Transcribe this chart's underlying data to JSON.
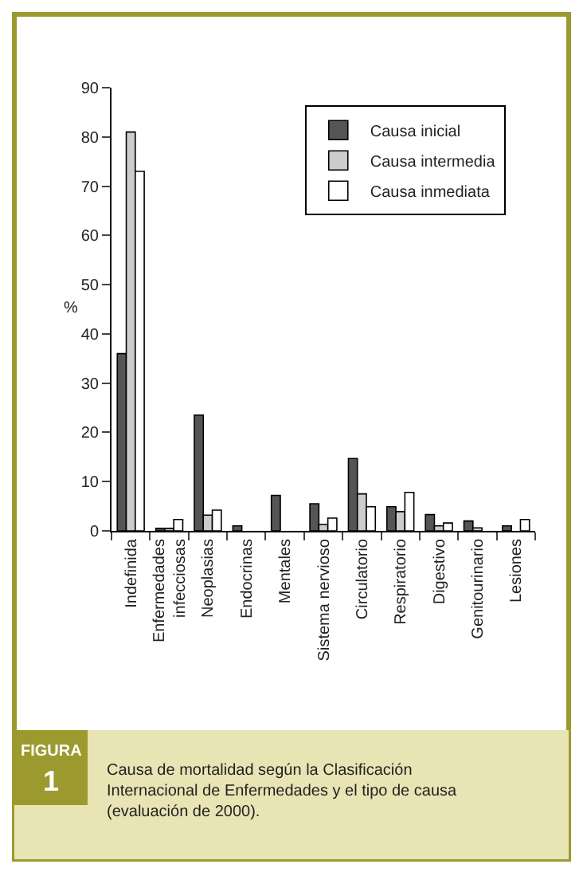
{
  "chart_data": {
    "type": "bar",
    "categories": [
      "Indefinida",
      "Enfermedades\ninfecciosas",
      "Neoplasias",
      "Endocrinas",
      "Mentales",
      "Sistema nervioso",
      "Circulatorio",
      "Respiratorio",
      "Digestivo",
      "Genitourinario",
      "Lesiones"
    ],
    "series": [
      {
        "name": "Causa inicial",
        "color": "#555555",
        "values": [
          36,
          0.5,
          23.5,
          1,
          7.2,
          5.5,
          14.7,
          4.9,
          3.3,
          2,
          1
        ]
      },
      {
        "name": "Causa intermedia",
        "color": "#cccccc",
        "values": [
          81,
          0.5,
          3.2,
          0,
          0,
          1.3,
          7.5,
          3.9,
          1,
          0.6,
          0
        ]
      },
      {
        "name": "Causa inmediata",
        "color": "#ffffff",
        "values": [
          73,
          2.3,
          4.2,
          0,
          0,
          2.6,
          4.9,
          7.8,
          1.6,
          0,
          2.3
        ]
      }
    ],
    "ylabel": "%",
    "ylim": [
      0,
      90
    ],
    "yticks": [
      0,
      10,
      20,
      30,
      40,
      50,
      60,
      70,
      80,
      90
    ],
    "legend": "top right",
    "annotations": [
      "FIGURA",
      "1",
      "Causa de mortalidad según la Clasificación Internacional de Enfermedades y el tipo de causa (evaluación de 2000)."
    ]
  }
}
